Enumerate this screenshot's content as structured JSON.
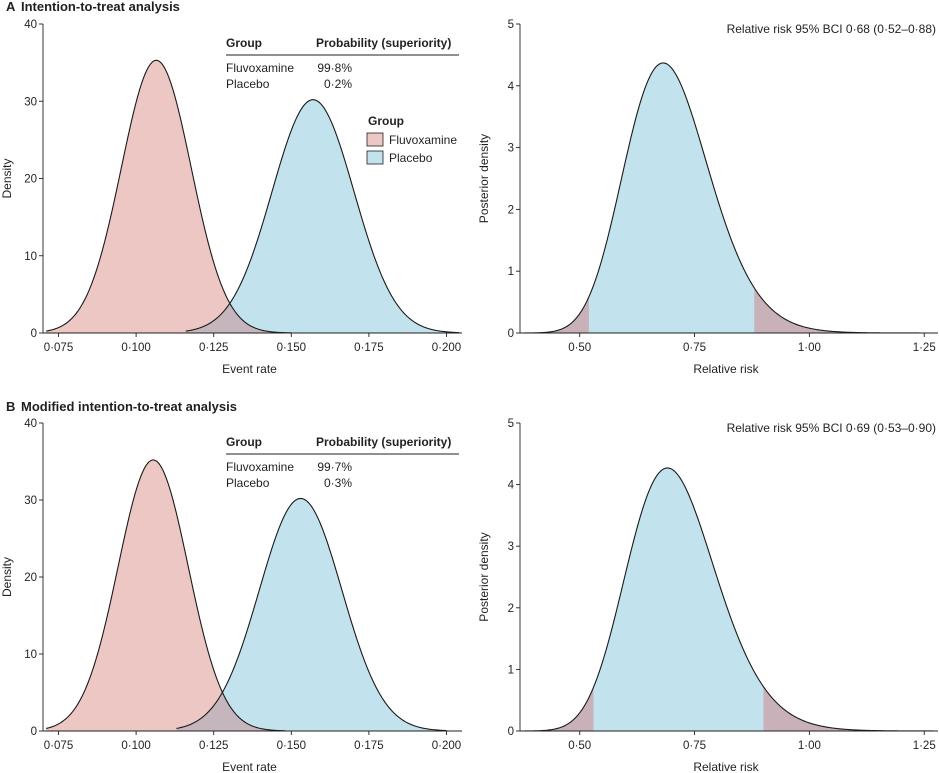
{
  "panels": [
    {
      "letter": "A",
      "title": "Intention-to-treat analysis"
    },
    {
      "letter": "B",
      "title": "Modified intention-to-treat analysis"
    }
  ],
  "colors": {
    "fluvoxamine": "#edc7c4",
    "placebo": "#c2e2ed",
    "overlap": "#c5b5bc",
    "tail": "#c8b1b9",
    "line": "#1a1a1a"
  },
  "chart_data": [
    {
      "type": "area",
      "panel": "A",
      "xlabel": "Event rate",
      "ylabel": "Density",
      "xlim": [
        0.07,
        0.205
      ],
      "ylim": [
        0,
        40
      ],
      "x_ticks": [
        0.075,
        0.1,
        0.125,
        0.15,
        0.175,
        0.2
      ],
      "x_tick_labels": [
        "0·075",
        "0·100",
        "0·125",
        "0·150",
        "0·175",
        "0·200"
      ],
      "y_ticks": [
        0,
        10,
        20,
        30,
        40
      ],
      "y_tick_labels": [
        "0",
        "10",
        "20",
        "30",
        "40"
      ],
      "series": [
        {
          "name": "Fluvoxamine",
          "mean": 0.1065,
          "sd": 0.01125,
          "peak": 35.3,
          "range": [
            0.071,
            0.15
          ],
          "color": "#edc7c4"
        },
        {
          "name": "Placebo",
          "mean": 0.157,
          "sd": 0.0132,
          "peak": 30.2,
          "range": [
            0.116,
            0.204
          ],
          "color": "#c2e2ed"
        }
      ],
      "table": {
        "headers": [
          "Group",
          "Probability (superiority)"
        ],
        "rows": [
          [
            "Fluvoxamine",
            "99·8%"
          ],
          [
            "Placebo",
            "0·2%"
          ]
        ]
      },
      "legend": {
        "title": "Group",
        "items": [
          "Fluvoxamine",
          "Placebo"
        ],
        "position": "right of table"
      }
    },
    {
      "type": "area",
      "panel": "A",
      "xlabel": "Relative risk",
      "ylabel": "Posterior density",
      "xlim": [
        0.37,
        1.28
      ],
      "ylim": [
        0,
        5
      ],
      "x_ticks": [
        0.5,
        0.75,
        1.0,
        1.25
      ],
      "x_tick_labels": [
        "0·50",
        "0·75",
        "1·00",
        "1·25"
      ],
      "y_ticks": [
        0,
        1,
        2,
        3,
        4,
        5
      ],
      "y_tick_labels": [
        "0",
        "1",
        "2",
        "3",
        "4",
        "5"
      ],
      "annotation": "Relative risk 95% BCI 0·68 (0·52–0·88)",
      "series": [
        {
          "name": "Relative risk posterior",
          "mode": 0.675,
          "mu": -0.365,
          "sigma": 0.135,
          "peak": 4.37,
          "range": [
            0.38,
            1.27
          ],
          "ci": [
            0.52,
            0.88
          ]
        }
      ]
    },
    {
      "type": "area",
      "panel": "B",
      "xlabel": "Event rate",
      "ylabel": "Density",
      "xlim": [
        0.07,
        0.205
      ],
      "ylim": [
        0,
        40
      ],
      "x_ticks": [
        0.075,
        0.1,
        0.125,
        0.15,
        0.175,
        0.2
      ],
      "x_tick_labels": [
        "0·075",
        "0·100",
        "0·125",
        "0·150",
        "0·175",
        "0·200"
      ],
      "y_ticks": [
        0,
        10,
        20,
        30,
        40
      ],
      "y_tick_labels": [
        "0",
        "10",
        "20",
        "30",
        "40"
      ],
      "series": [
        {
          "name": "Fluvoxamine",
          "mean": 0.1055,
          "sd": 0.0113,
          "peak": 35.2,
          "range": [
            0.071,
            0.148
          ],
          "color": "#edc7c4"
        },
        {
          "name": "Placebo",
          "mean": 0.153,
          "sd": 0.0133,
          "peak": 30.2,
          "range": [
            0.113,
            0.2
          ],
          "color": "#c2e2ed"
        }
      ],
      "table": {
        "headers": [
          "Group",
          "Probability (superiority)"
        ],
        "rows": [
          [
            "Fluvoxamine",
            "99·7%"
          ],
          [
            "Placebo",
            "0·3%"
          ]
        ]
      }
    },
    {
      "type": "area",
      "panel": "B",
      "xlabel": "Relative risk",
      "ylabel": "Posterior density",
      "xlim": [
        0.37,
        1.28
      ],
      "ylim": [
        0,
        5
      ],
      "x_ticks": [
        0.5,
        0.75,
        1.0,
        1.25
      ],
      "x_tick_labels": [
        "0·50",
        "0·75",
        "1·00",
        "1·25"
      ],
      "y_ticks": [
        0,
        1,
        2,
        3,
        4,
        5
      ],
      "y_tick_labels": [
        "0",
        "1",
        "2",
        "3",
        "4",
        "5"
      ],
      "annotation": "Relative risk 95% BCI 0·69 (0·53–0·90)",
      "series": [
        {
          "name": "Relative risk posterior",
          "mode": 0.68,
          "mu": -0.35,
          "sigma": 0.14,
          "peak": 4.27,
          "range": [
            0.38,
            1.27
          ],
          "ci": [
            0.53,
            0.9
          ]
        }
      ]
    }
  ]
}
